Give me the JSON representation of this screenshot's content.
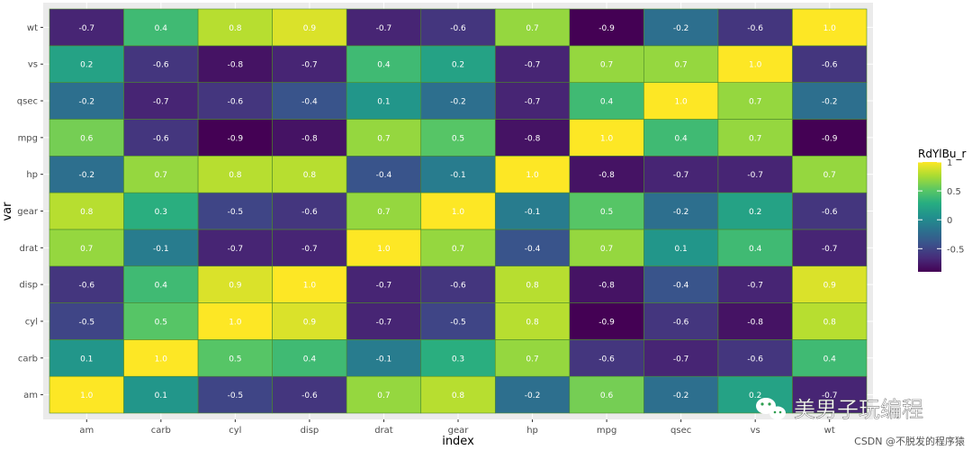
{
  "chart_data": {
    "type": "heatmap",
    "xlabel": "index",
    "ylabel": "var",
    "x_categories": [
      "am",
      "carb",
      "cyl",
      "disp",
      "drat",
      "gear",
      "hp",
      "mpg",
      "qsec",
      "vs",
      "wt"
    ],
    "y_categories": [
      "am",
      "carb",
      "cyl",
      "disp",
      "drat",
      "gear",
      "hp",
      "mpg",
      "qsec",
      "vs",
      "wt"
    ],
    "values": [
      [
        1.0,
        0.1,
        -0.5,
        -0.6,
        0.7,
        0.8,
        -0.2,
        0.6,
        -0.2,
        0.2,
        -0.7
      ],
      [
        0.1,
        1.0,
        0.5,
        0.4,
        -0.1,
        0.3,
        0.7,
        -0.6,
        -0.7,
        -0.6,
        0.4
      ],
      [
        -0.5,
        0.5,
        1.0,
        0.9,
        -0.7,
        -0.5,
        0.8,
        -0.9,
        -0.6,
        -0.8,
        0.8
      ],
      [
        -0.6,
        0.4,
        0.9,
        1.0,
        -0.7,
        -0.6,
        0.8,
        -0.8,
        -0.4,
        -0.7,
        0.9
      ],
      [
        0.7,
        -0.1,
        -0.7,
        -0.7,
        1.0,
        0.7,
        -0.4,
        0.7,
        0.1,
        0.4,
        -0.7
      ],
      [
        0.8,
        0.3,
        -0.5,
        -0.6,
        0.7,
        1.0,
        -0.1,
        0.5,
        -0.2,
        0.2,
        -0.6
      ],
      [
        -0.2,
        0.7,
        0.8,
        0.8,
        -0.4,
        -0.1,
        1.0,
        -0.8,
        -0.7,
        -0.7,
        0.7
      ],
      [
        0.6,
        -0.6,
        -0.9,
        -0.8,
        0.7,
        0.5,
        -0.8,
        1.0,
        0.4,
        0.7,
        -0.9
      ],
      [
        -0.2,
        -0.7,
        -0.6,
        -0.4,
        0.1,
        -0.2,
        -0.7,
        0.4,
        1.0,
        0.7,
        -0.2
      ],
      [
        0.2,
        -0.6,
        -0.8,
        -0.7,
        0.4,
        0.2,
        -0.7,
        0.7,
        0.7,
        1.0,
        -0.6
      ],
      [
        -0.7,
        0.4,
        0.8,
        0.9,
        -0.7,
        -0.6,
        0.7,
        -0.9,
        -0.2,
        -0.6,
        1.0
      ]
    ],
    "color_scale": {
      "name": "viridis",
      "domain": [
        -0.9,
        1.0
      ],
      "stops": [
        "#440154",
        "#472c7a",
        "#3b518b",
        "#2c718e",
        "#21908d",
        "#27ad81",
        "#5cc863",
        "#aadc32",
        "#fde725"
      ]
    },
    "legend": {
      "title": "RdYlBu_r",
      "ticks": [
        "1",
        "0.5",
        "0",
        "-0.5"
      ],
      "tick_values": [
        1,
        0.5,
        0,
        -0.5
      ],
      "position": "right"
    },
    "panel_background": "#ebebeb",
    "grid": true
  },
  "watermark": {
    "brand_text": "美男子玩编程",
    "credit_text": "CSDN @不脱发的程序猿"
  }
}
